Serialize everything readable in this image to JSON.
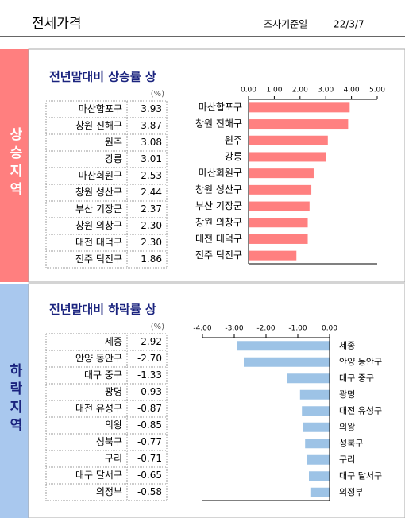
{
  "header": {
    "title": "전세가격",
    "date_label": "조사기준일",
    "date": "22/3/7"
  },
  "sections": [
    {
      "side_label": "상승지역",
      "title": "전년말대비 상승률 상",
      "unit": "(%)",
      "table": {
        "rows": [
          [
            "마산합포구",
            "3.93"
          ],
          [
            "창원 진해구",
            "3.87"
          ],
          [
            "원주",
            "3.08"
          ],
          [
            "강릉",
            "3.01"
          ],
          [
            "마산회원구",
            "2.53"
          ],
          [
            "창원 성산구",
            "2.44"
          ],
          [
            "부산 기장군",
            "2.37"
          ],
          [
            "창원 의창구",
            "2.30"
          ],
          [
            "대전 대덕구",
            "2.30"
          ],
          [
            "전주 덕진구",
            "1.86"
          ]
        ]
      }
    },
    {
      "side_label": "하락지역",
      "title": "전년말대비 하락률 상",
      "unit": "(%)",
      "table": {
        "rows": [
          [
            "세종",
            "-2.92"
          ],
          [
            "안양 동안구",
            "-2.70"
          ],
          [
            "대구 중구",
            "-1.33"
          ],
          [
            "광명",
            "-0.93"
          ],
          [
            "대전 유성구",
            "-0.87"
          ],
          [
            "의왕",
            "-0.85"
          ],
          [
            "성북구",
            "-0.77"
          ],
          [
            "구리",
            "-0.71"
          ],
          [
            "대구 달서구",
            "-0.65"
          ],
          [
            "의정부",
            "-0.58"
          ]
        ]
      }
    }
  ],
  "chart_data": [
    {
      "type": "barh",
      "color": "#ff8080",
      "categories": [
        "마산합포구",
        "창원 진해구",
        "원주",
        "강릉",
        "마산회원구",
        "창원 성산구",
        "부산 기장군",
        "창원 의창구",
        "대전 대덕구",
        "전주 덕진구"
      ],
      "values": [
        3.93,
        3.87,
        3.08,
        3.01,
        2.53,
        2.44,
        2.37,
        2.3,
        2.3,
        1.86
      ],
      "xlim": [
        0,
        5
      ],
      "xticks": [
        {
          "value": 0,
          "label": "0.00"
        },
        {
          "value": 1,
          "label": "1.00"
        },
        {
          "value": 2,
          "label": "2.00"
        },
        {
          "value": 3,
          "label": "3.00"
        },
        {
          "value": 4,
          "label": "4.00"
        },
        {
          "value": 5,
          "label": "5.00"
        }
      ]
    },
    {
      "type": "barh",
      "color": "#9dc3e6",
      "categories": [
        "세종",
        "안양 동안구",
        "대구 중구",
        "광명",
        "대전 유성구",
        "의왕",
        "성북구",
        "구리",
        "대구 달서구",
        "의정부"
      ],
      "values": [
        -2.92,
        -2.7,
        -1.33,
        -0.93,
        -0.87,
        -0.85,
        -0.77,
        -0.71,
        -0.65,
        -0.58
      ],
      "xlim": [
        -4,
        0
      ],
      "xticks": [
        {
          "value": -4,
          "label": "-4.00"
        },
        {
          "value": -3,
          "label": "-3.00"
        },
        {
          "value": -2,
          "label": "-2.00"
        },
        {
          "value": -1,
          "label": "-1.00"
        },
        {
          "value": 0,
          "label": "0.00"
        }
      ]
    }
  ]
}
